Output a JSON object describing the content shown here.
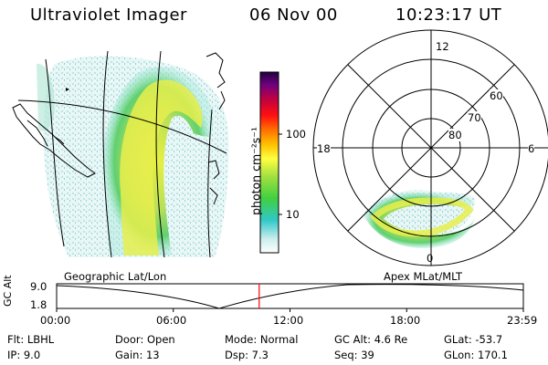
{
  "header": {
    "title": "Ultraviolet Imager",
    "date": "06 Nov 00",
    "time": "10:23:17 UT"
  },
  "colorbar": {
    "label": "photon cm⁻²s⁻¹",
    "tick_100": "100",
    "tick_10": "10"
  },
  "polar": {
    "mlt_top": "12",
    "mlt_left": "18",
    "mlt_right": "6",
    "mlt_bottom": "0",
    "lat_60": "60",
    "lat_70": "70",
    "lat_80": "80"
  },
  "labels": {
    "left_panel": "Geographic Lat/Lon",
    "right_panel": "Apex MLat/MLT"
  },
  "timeline": {
    "ylabel": "GC Alt",
    "ytick_top": "9.0",
    "ytick_bottom": "1.8",
    "ticks": [
      "00:00",
      "06:00",
      "12:00",
      "18:00",
      "23:59"
    ],
    "current_fraction": 0.434
  },
  "info": {
    "filt": "Flt:  LBHL",
    "ip": "IP:  9.0",
    "door": "Door:  Open",
    "gain": "Gain:  13",
    "mode": "Mode:  Normal",
    "dsp": "Dsp:      7.3",
    "gcalt": "GC Alt:  4.6 Re",
    "seq": "Seq:  39",
    "glat": "GLat:  -53.7",
    "glon": "GLon:  170.1"
  },
  "colors": {
    "marker": "#ff0000"
  }
}
